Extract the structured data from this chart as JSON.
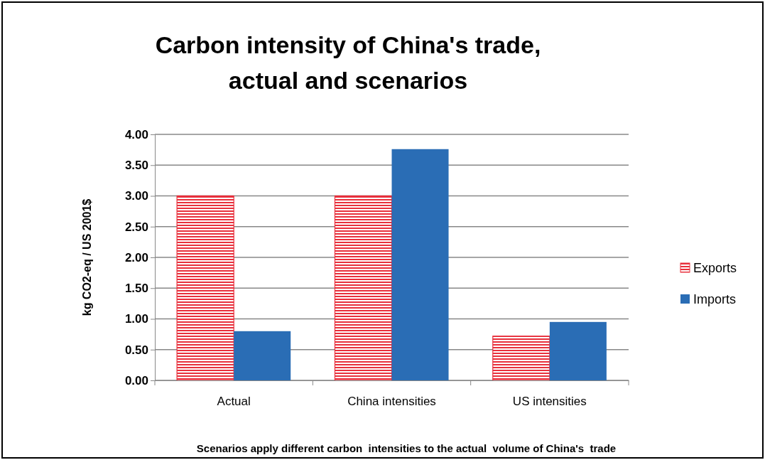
{
  "chart_data": {
    "type": "bar",
    "title": "Carbon intensity of China's trade, actual and scenarios",
    "ylabel": "kg CO2-eq / US 2001$",
    "xlabel": "Scenarios apply different carbon  intensities to the actual  volume of China's  trade",
    "categories": [
      "Actual",
      "China intensities",
      "US intensities"
    ],
    "series": [
      {
        "name": "Exports",
        "color": "#e8303c",
        "values": [
          3.0,
          3.0,
          0.72
        ]
      },
      {
        "name": "Imports",
        "color": "#2a6db5",
        "values": [
          0.8,
          3.76,
          0.95
        ]
      }
    ],
    "ylim": [
      0,
      4
    ],
    "yticks": [
      {
        "value": 0,
        "label": "0.00"
      },
      {
        "value": 0.5,
        "label": "0.50"
      },
      {
        "value": 1,
        "label": "1.00"
      },
      {
        "value": 1.5,
        "label": "1.50"
      },
      {
        "value": 2,
        "label": "2.00"
      },
      {
        "value": 2.5,
        "label": "2.50"
      },
      {
        "value": 3,
        "label": "3.00"
      },
      {
        "value": 3.5,
        "label": "3.50"
      },
      {
        "value": 4,
        "label": "4.00"
      }
    ],
    "grid": "y",
    "legend": "right"
  }
}
